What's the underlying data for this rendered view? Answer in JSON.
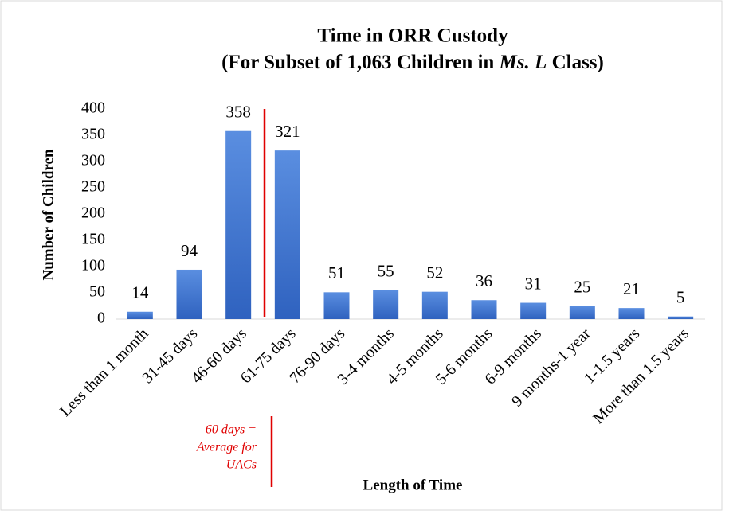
{
  "chart_data": {
    "type": "bar",
    "title": [
      "Time in ORR Custody",
      [
        "(For Subset of 1,063 Children in ",
        "Ms. L",
        " Class)"
      ]
    ],
    "x_label": "Length of Time",
    "y_label": "Number of Children",
    "categories": [
      "Less than 1 month",
      "31-45 days",
      "46-60 days",
      "61-75 days",
      "76-90 days",
      "3-4 months",
      "4-5 months",
      "5-6 months",
      "6-9 months",
      "9 months-1 year",
      "1-1.5 years",
      "More than 1.5 years"
    ],
    "values": [
      14,
      94,
      358,
      321,
      51,
      55,
      52,
      36,
      31,
      25,
      21,
      5
    ],
    "color": "#4472c4",
    "ylim": [
      0,
      400
    ],
    "yticks": [
      0,
      50,
      100,
      150,
      200,
      250,
      300,
      350,
      400
    ],
    "grid": false,
    "annotation": [
      "60 days =",
      "Average for",
      "UACs"
    ]
  }
}
